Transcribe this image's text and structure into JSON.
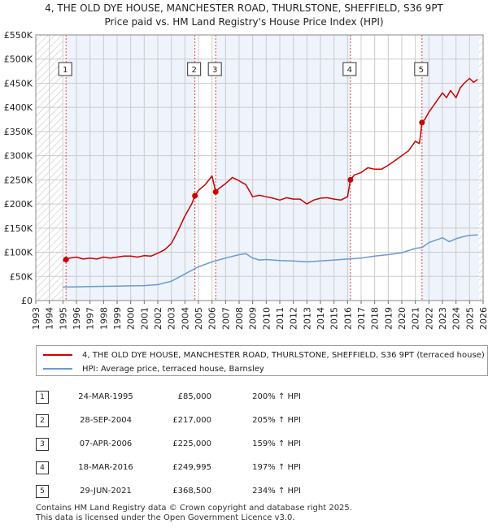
{
  "header": {
    "line1": "4, THE OLD DYE HOUSE, MANCHESTER ROAD, THURLSTONE, SHEFFIELD, S36 9PT",
    "line2": "Price paid vs. HM Land Registry's House Price Index (HPI)"
  },
  "colors": {
    "property": "#cc0000",
    "hpi": "#6a9ad0",
    "shade": "#eef3fc",
    "grid": "#cccccc"
  },
  "legend": {
    "property_label": "4, THE OLD DYE HOUSE, MANCHESTER ROAD, THURLSTONE, SHEFFIELD, S36 9PT (terraced house)",
    "hpi_label": "HPI: Average price, terraced house, Barnsley"
  },
  "sales": [
    {
      "num": "1",
      "date": "24-MAR-1995",
      "price": "£85,000",
      "hpi": "200% ↑ HPI"
    },
    {
      "num": "2",
      "date": "28-SEP-2004",
      "price": "£217,000",
      "hpi": "205% ↑ HPI"
    },
    {
      "num": "3",
      "date": "07-APR-2006",
      "price": "£225,000",
      "hpi": "159% ↑ HPI"
    },
    {
      "num": "4",
      "date": "18-MAR-2016",
      "price": "£249,995",
      "hpi": "197% ↑ HPI"
    },
    {
      "num": "5",
      "date": "29-JUN-2021",
      "price": "£368,500",
      "hpi": "234% ↑ HPI"
    }
  ],
  "footer": {
    "line1": "Contains HM Land Registry data © Crown copyright and database right 2025.",
    "line2": "This data is licensed under the Open Government Licence v3.0."
  },
  "chart_data": {
    "type": "line",
    "title": "Price paid vs. HM Land Registry's House Price Index (HPI)",
    "xlim": [
      1993,
      2026
    ],
    "ylim": [
      0,
      550000
    ],
    "x_ticks": [
      1993,
      1994,
      1995,
      1996,
      1997,
      1998,
      1999,
      2000,
      2001,
      2002,
      2003,
      2004,
      2005,
      2006,
      2007,
      2008,
      2009,
      2010,
      2011,
      2012,
      2013,
      2014,
      2015,
      2016,
      2017,
      2018,
      2019,
      2020,
      2021,
      2022,
      2023,
      2024,
      2025,
      2026
    ],
    "y_ticks": [
      0,
      50000,
      100000,
      150000,
      200000,
      250000,
      300000,
      350000,
      400000,
      450000,
      500000,
      550000
    ],
    "y_tick_labels": [
      "£0",
      "£50K",
      "£100K",
      "£150K",
      "£200K",
      "£250K",
      "£300K",
      "£350K",
      "£400K",
      "£450K",
      "£500K",
      "£550K"
    ],
    "grid": true,
    "shaded_ranges": [
      [
        1995.23,
        2004.74
      ],
      [
        2006.27,
        2016.21
      ],
      [
        2021.49,
        2025.7
      ]
    ],
    "hatched_ranges": [
      [
        1993,
        1995.0
      ],
      [
        2025.7,
        2026
      ]
    ],
    "sale_markers": [
      {
        "label": "1",
        "x": 1995.23,
        "y": 85000
      },
      {
        "label": "2",
        "x": 2004.74,
        "y": 217000
      },
      {
        "label": "3",
        "x": 2006.27,
        "y": 225000
      },
      {
        "label": "4",
        "x": 2016.21,
        "y": 249995
      },
      {
        "label": "5",
        "x": 2021.49,
        "y": 368500
      }
    ],
    "series": [
      {
        "name": "4, THE OLD DYE HOUSE, MANCHESTER ROAD, THURLSTONE, SHEFFIELD, S36 9PT (terraced house)",
        "color": "#cc0000",
        "x": [
          1995.0,
          1995.23,
          1995.5,
          1996.0,
          1996.5,
          1997.0,
          1997.5,
          1998.0,
          1998.5,
          1999.0,
          1999.5,
          2000.0,
          2000.5,
          2001.0,
          2001.5,
          2002.0,
          2002.5,
          2003.0,
          2003.5,
          2004.0,
          2004.5,
          2004.74,
          2005.0,
          2005.5,
          2006.0,
          2006.27,
          2006.5,
          2007.0,
          2007.5,
          2008.0,
          2008.5,
          2009.0,
          2009.5,
          2010.0,
          2010.5,
          2011.0,
          2011.5,
          2012.0,
          2012.5,
          2013.0,
          2013.5,
          2014.0,
          2014.5,
          2015.0,
          2015.5,
          2016.0,
          2016.21,
          2016.5,
          2017.0,
          2017.5,
          2018.0,
          2018.5,
          2019.0,
          2019.5,
          2020.0,
          2020.5,
          2021.0,
          2021.3,
          2021.49,
          2021.7,
          2022.0,
          2022.5,
          2023.0,
          2023.3,
          2023.6,
          2024.0,
          2024.3,
          2024.6,
          2025.0,
          2025.3,
          2025.6
        ],
        "y": [
          82000,
          85000,
          88000,
          90000,
          86000,
          88000,
          86000,
          90000,
          88000,
          90000,
          92000,
          92000,
          90000,
          93000,
          92000,
          98000,
          105000,
          118000,
          145000,
          175000,
          200000,
          217000,
          228000,
          240000,
          258000,
          225000,
          232000,
          242000,
          255000,
          248000,
          240000,
          215000,
          218000,
          215000,
          212000,
          208000,
          213000,
          210000,
          210000,
          200000,
          208000,
          212000,
          213000,
          210000,
          208000,
          215000,
          249995,
          260000,
          265000,
          275000,
          272000,
          272000,
          280000,
          290000,
          300000,
          310000,
          330000,
          325000,
          368500,
          375000,
          390000,
          410000,
          430000,
          420000,
          435000,
          420000,
          440000,
          450000,
          460000,
          452000,
          458000
        ]
      },
      {
        "name": "HPI: Average price, terraced house, Barnsley",
        "color": "#6a9ad0",
        "x": [
          1995.0,
          1996.0,
          1997.0,
          1998.0,
          1999.0,
          2000.0,
          2001.0,
          2002.0,
          2003.0,
          2004.0,
          2005.0,
          2006.0,
          2007.0,
          2008.0,
          2008.5,
          2009.0,
          2009.5,
          2010.0,
          2011.0,
          2012.0,
          2013.0,
          2014.0,
          2015.0,
          2016.0,
          2017.0,
          2018.0,
          2019.0,
          2020.0,
          2021.0,
          2021.5,
          2022.0,
          2023.0,
          2023.5,
          2024.0,
          2024.5,
          2025.0,
          2025.6
        ],
        "y": [
          28000,
          28500,
          29000,
          29500,
          30000,
          30500,
          31000,
          33000,
          40000,
          55000,
          70000,
          80000,
          88000,
          95000,
          97000,
          88000,
          84000,
          85000,
          83000,
          82000,
          80000,
          82000,
          84000,
          86000,
          88000,
          92000,
          95000,
          99000,
          108000,
          110000,
          120000,
          130000,
          122000,
          128000,
          132000,
          135000,
          136000
        ]
      }
    ]
  }
}
